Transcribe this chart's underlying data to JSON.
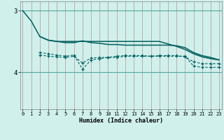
{
  "background_color": "#d0f0ec",
  "grid_color_v": "#c0a0a0",
  "grid_color_h": "#50a8a0",
  "line_color": "#006060",
  "xlabel": "Humidex (Indice chaleur)",
  "xlim": [
    -0.3,
    23.3
  ],
  "ylim": [
    4.6,
    2.85
  ],
  "yticks": [
    3,
    4
  ],
  "xticks": [
    0,
    1,
    2,
    3,
    4,
    5,
    6,
    7,
    8,
    9,
    10,
    11,
    12,
    13,
    14,
    15,
    16,
    17,
    18,
    19,
    20,
    21,
    22,
    23
  ],
  "line1_x": [
    0,
    1,
    2,
    3,
    4,
    5,
    6,
    7,
    8,
    9,
    10,
    11,
    12,
    13,
    14,
    15,
    16,
    17,
    18,
    19,
    20,
    21,
    22,
    23
  ],
  "line1_y": [
    3.0,
    3.17,
    3.42,
    3.48,
    3.5,
    3.5,
    3.5,
    3.5,
    3.5,
    3.5,
    3.5,
    3.5,
    3.5,
    3.5,
    3.5,
    3.5,
    3.5,
    3.54,
    3.58,
    3.63,
    3.7,
    3.75,
    3.78,
    3.8
  ],
  "line2_x": [
    2,
    3,
    4,
    5,
    6,
    7,
    8,
    9,
    10,
    11,
    12,
    13,
    14,
    15,
    16,
    17,
    18,
    19,
    20,
    21,
    22,
    23
  ],
  "line2_y": [
    3.42,
    3.48,
    3.5,
    3.52,
    3.52,
    3.49,
    3.52,
    3.53,
    3.55,
    3.55,
    3.56,
    3.56,
    3.56,
    3.56,
    3.56,
    3.56,
    3.57,
    3.6,
    3.68,
    3.73,
    3.76,
    3.8
  ],
  "line3_x": [
    2,
    3,
    4,
    5,
    6,
    7,
    8,
    9,
    10,
    11,
    12,
    13,
    14,
    15,
    16,
    17,
    18,
    19,
    20,
    21,
    22,
    23
  ],
  "line3_y": [
    3.72,
    3.74,
    3.75,
    3.76,
    3.74,
    3.85,
    3.77,
    3.76,
    3.76,
    3.74,
    3.73,
    3.73,
    3.73,
    3.74,
    3.73,
    3.73,
    3.73,
    3.75,
    3.83,
    3.86,
    3.86,
    3.86
  ],
  "line4_x": [
    2,
    3,
    4,
    5,
    6,
    7,
    8,
    9,
    10,
    11,
    12,
    13,
    14,
    15,
    16,
    17,
    18,
    19,
    20,
    21,
    22,
    23
  ],
  "line4_y": [
    3.68,
    3.7,
    3.72,
    3.74,
    3.72,
    3.95,
    3.8,
    3.78,
    3.76,
    3.76,
    3.74,
    3.74,
    3.74,
    3.74,
    3.74,
    3.74,
    3.74,
    3.74,
    3.9,
    3.92,
    3.92,
    3.92
  ]
}
